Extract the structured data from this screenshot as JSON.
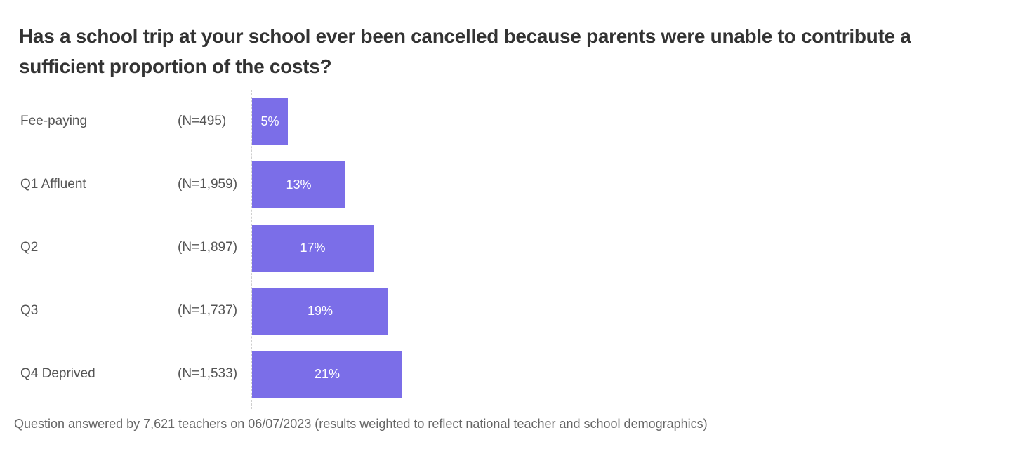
{
  "title": "Has a school trip at your school ever been cancelled because parents were unable to contribute a sufficient proportion of the costs?",
  "footer": "Question answered by 7,621 teachers on 06/07/2023 (results weighted to reflect national teacher and school demographics)",
  "colors": {
    "bar": "#7b6ee8",
    "text": "#555555",
    "title": "#333333"
  },
  "chart_data": {
    "type": "bar",
    "orientation": "horizontal",
    "title": "Has a school trip at your school ever been cancelled because parents were unable to contribute a sufficient proportion of the costs?",
    "categories": [
      "Fee-paying",
      "Q1 Affluent",
      "Q2",
      "Q3",
      "Q4 Deprived"
    ],
    "sample_sizes": [
      "(N=495)",
      "(N=1,959)",
      "(N=1,897)",
      "(N=1,737)",
      "(N=1,533)"
    ],
    "values": [
      5,
      13,
      17,
      19,
      21
    ],
    "value_labels": [
      "5%",
      "13%",
      "17%",
      "19%",
      "21%"
    ],
    "unit": "%",
    "xlabel": "",
    "ylabel": "",
    "xlim": [
      0,
      100
    ],
    "grid": false,
    "legend": "none"
  }
}
